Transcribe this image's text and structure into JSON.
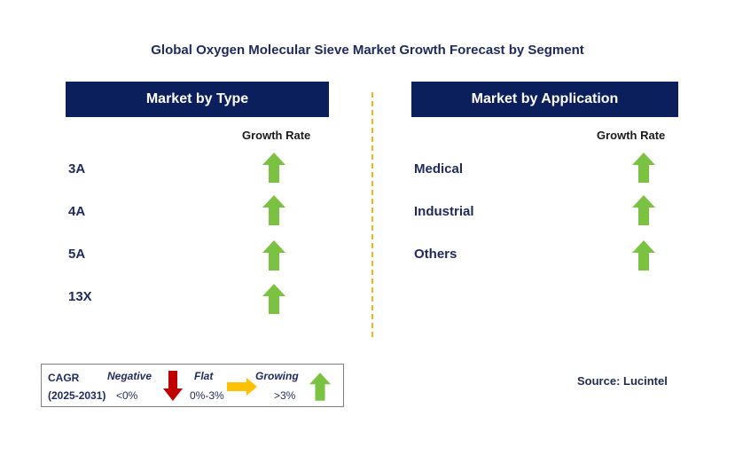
{
  "title": "Global Oxygen Molecular Sieve Market Growth Forecast by Segment",
  "left_panel": {
    "header": "Market by Type",
    "growth_rate_label": "Growth Rate",
    "rows": [
      {
        "label": "3A",
        "trend": "growing"
      },
      {
        "label": "4A",
        "trend": "growing"
      },
      {
        "label": "5A",
        "trend": "growing"
      },
      {
        "label": "13X",
        "trend": "growing"
      }
    ]
  },
  "right_panel": {
    "header": "Market by Application",
    "growth_rate_label": "Growth Rate",
    "rows": [
      {
        "label": "Medical",
        "trend": "growing"
      },
      {
        "label": "Industrial",
        "trend": "growing"
      },
      {
        "label": "Others",
        "trend": "growing"
      }
    ]
  },
  "legend": {
    "cagr_label": "CAGR",
    "period": "(2025-2031)",
    "negative": {
      "label": "Negative",
      "range": "<0%",
      "icon": "arrow-down-icon",
      "color": "#c00000"
    },
    "flat": {
      "label": "Flat",
      "range": "0%-3%",
      "icon": "arrow-right-icon",
      "color": "#ffc000"
    },
    "growing": {
      "label": "Growing",
      "range": ">3%",
      "icon": "arrow-up-icon",
      "color": "#7cc242"
    }
  },
  "source": "Source: Lucintel",
  "colors": {
    "header_bg": "#0b1f5c",
    "divider": "#f2b41e",
    "growing": "#7cc242"
  }
}
